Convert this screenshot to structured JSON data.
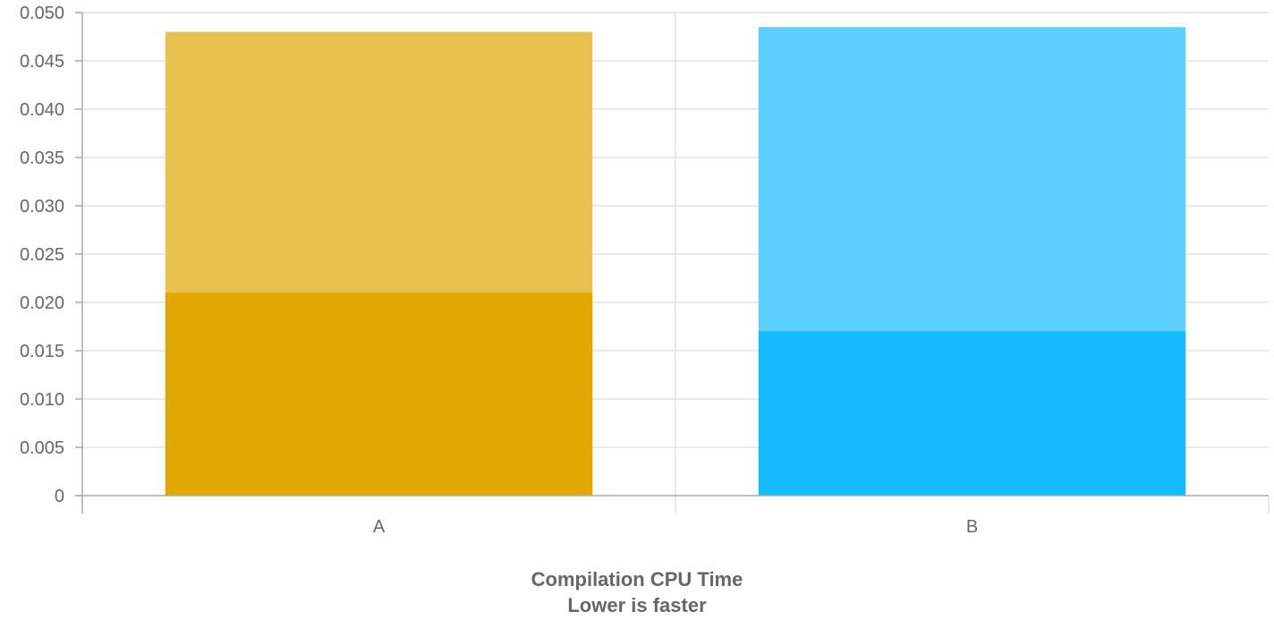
{
  "chart_data": {
    "type": "bar",
    "stacked": false,
    "overlapping": true,
    "categories": [
      "A",
      "B"
    ],
    "series": [
      {
        "total": 0.048,
        "inner": 0.021
      },
      {
        "total": 0.0485,
        "inner": 0.017
      }
    ],
    "colors": {
      "A": {
        "outer": "#e8c14e",
        "inner": "#e0a800"
      },
      "B": {
        "outer": "#5bd0ff",
        "inner": "#14bcff"
      }
    },
    "xlabel_lines": [
      "Compilation CPU Time",
      "Lower is faster"
    ],
    "title": "",
    "ylabel": "",
    "ylim": [
      0,
      0.05
    ],
    "yticks": [
      "0",
      "0.005",
      "0.010",
      "0.015",
      "0.020",
      "0.025",
      "0.030",
      "0.035",
      "0.040",
      "0.045",
      "0.050"
    ],
    "grid": true,
    "legend": "none"
  }
}
